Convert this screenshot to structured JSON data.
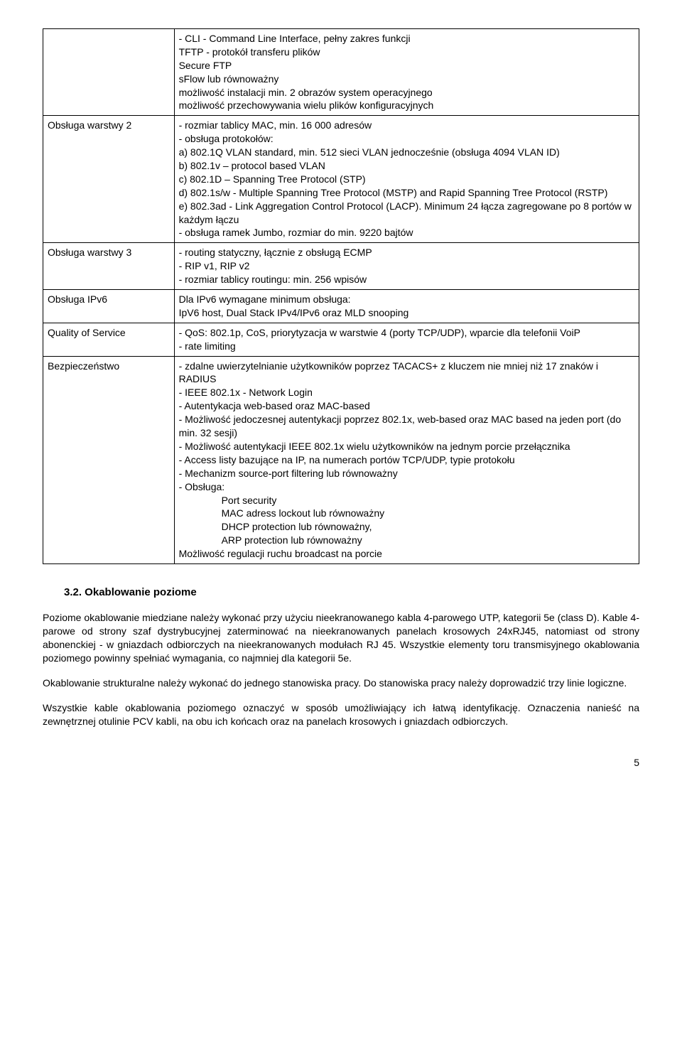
{
  "rows": [
    {
      "label": "",
      "content": "- CLI - Command Line Interface, pełny zakres funkcji\nTFTP - protokół transferu plików\nSecure FTP\nsFlow lub równoważny\nmożliwość instalacji min. 2 obrazów system operacyjnego\nmożliwość przechowywania wielu plików konfiguracyjnych"
    },
    {
      "label": "Obsługa warstwy 2",
      "content": "- rozmiar tablicy MAC, min. 16 000 adresów\n- obsługa protokołów:\na) 802.1Q VLAN standard, min. 512 sieci VLAN jednocześnie (obsługa 4094 VLAN ID)\nb) 802.1v – protocol based VLAN\nc) 802.1D – Spanning Tree Protocol (STP)\nd) 802.1s/w - Multiple Spanning Tree Protocol (MSTP) and Rapid Spanning Tree Protocol (RSTP)\ne) 802.3ad - Link Aggregation Control Protocol (LACP). Minimum 24  łącza zagregowane po 8 portów w każdym łączu\n- obsługa ramek Jumbo, rozmiar do min. 9220 bajtów"
    },
    {
      "label": "Obsługa warstwy 3",
      "content": "- routing statyczny, łącznie z obsługą ECMP\n- RIP v1, RIP v2\n- rozmiar tablicy routingu: min. 256 wpisów"
    },
    {
      "label": "Obsługa IPv6",
      "content": "Dla IPv6 wymagane minimum obsługa:\nIpV6 host, Dual Stack IPv4/IPv6 oraz MLD snooping"
    },
    {
      "label": "Quality of Service",
      "content": "- QoS: 802.1p, CoS, priorytyzacja w warstwie 4 (porty TCP/UDP), wparcie dla telefonii VoiP\n- rate limiting"
    },
    {
      "label": "Bezpieczeństwo",
      "content": "- zdalne uwierzytelnianie użytkowników poprzez TACACS+ z kluczem nie mniej niż 17 znaków i RADIUS\n- IEEE 802.1x - Network Login\n- Autentykacja web-based oraz MAC-based\n- Możliwość jedoczesnej autentykacji poprzez 802.1x, web-based oraz MAC based na jeden port (do min. 32 sesji)\n- Możliwość autentykacji IEEE 802.1x wielu użytkowników na jednym porcie przełącznika\n- Access listy bazujące na IP, na numerach portów TCP/UDP, typie protokołu\n- Mechanizm source-port filtering lub równoważny\n- Obsługa:",
      "indented": "Port security\nMAC adress lockout lub równoważny\nDHCP protection lub równoważny,\nARP protection lub równoważny",
      "tail": "Możliwość regulacji ruchu broadcast na porcie"
    }
  ],
  "section_heading": "3.2. Okablowanie poziome",
  "paragraphs": [
    "Poziome okablowanie miedziane należy wykonać przy użyciu nieekranowanego kabla 4-parowego UTP, kategorii 5e (class D). Kable 4-parowe od strony szaf dystrybucyjnej zaterminować na nieekranowanych panelach krosowych 24xRJ45, natomiast od strony abonenckiej - w gniazdach odbiorczych na nieekranowanych modułach RJ 45. Wszystkie elementy toru transmisyjnego okablowania poziomego powinny spełniać wymagania, co najmniej dla kategorii 5e.",
    "Okablowanie strukturalne należy wykonać do jednego stanowiska pracy. Do stanowiska pracy należy doprowadzić trzy linie logiczne.",
    "Wszystkie kable okablowania poziomego oznaczyć w sposób umożliwiający ich łatwą identyfikację. Oznaczenia nanieść na zewnętrznej otulinie PCV kabli, na obu ich końcach oraz na panelach krosowych i gniazdach odbiorczych."
  ],
  "page_number": "5"
}
